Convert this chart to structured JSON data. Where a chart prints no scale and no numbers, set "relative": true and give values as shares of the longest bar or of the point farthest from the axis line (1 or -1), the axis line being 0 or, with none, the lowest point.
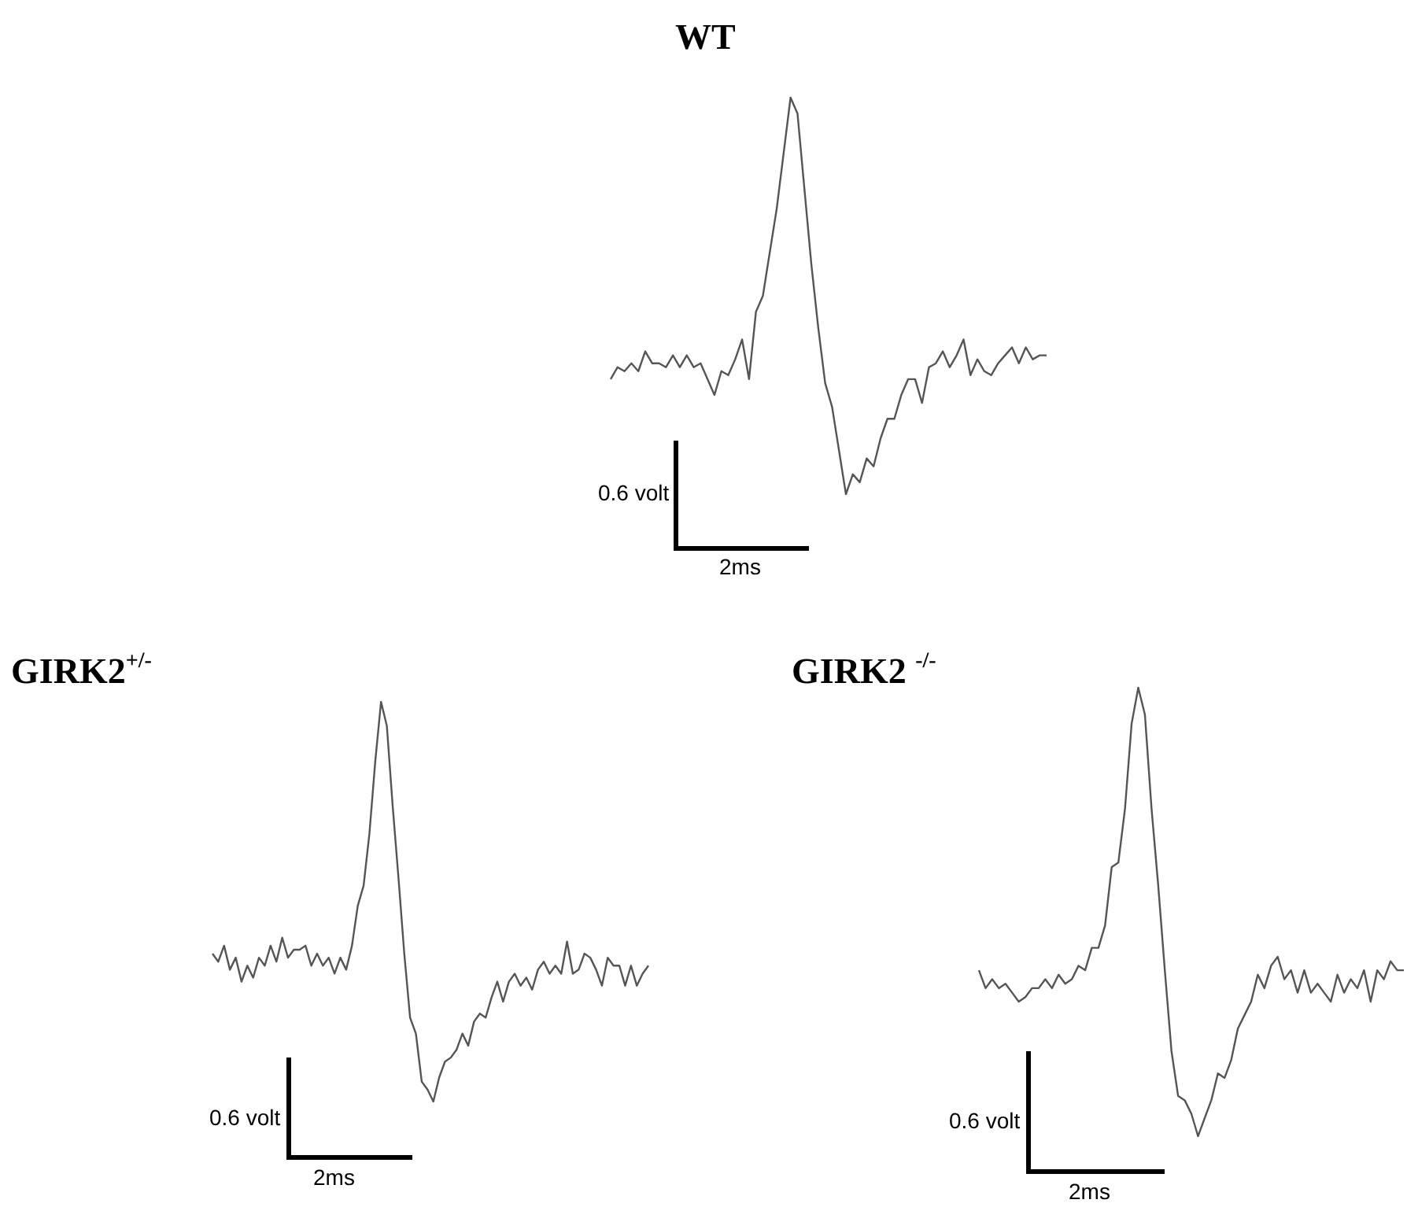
{
  "chart_data": [
    {
      "type": "line",
      "title": "WT",
      "relative": true,
      "categories": [
        null,
        null,
        null,
        null,
        null,
        null,
        null,
        null,
        null,
        null,
        null,
        null,
        null,
        null,
        null,
        null,
        null,
        null,
        null,
        null,
        null,
        null,
        null,
        null,
        null,
        null,
        null,
        null,
        null,
        null,
        null,
        null,
        null,
        null,
        null,
        null,
        null,
        null,
        null,
        null,
        null,
        null,
        null,
        null,
        null,
        null,
        null,
        null,
        null,
        null,
        null,
        null,
        null,
        null,
        null,
        null,
        null,
        null,
        null,
        null,
        null,
        null,
        null,
        null
      ],
      "series": [
        {
          "color": "#555555",
          "values": [
            0.29,
            0.32,
            0.31,
            0.33,
            0.31,
            0.36,
            0.33,
            0.33,
            0.32,
            0.35,
            0.32,
            0.35,
            0.32,
            0.33,
            0.29,
            0.25,
            0.31,
            0.3,
            0.34,
            0.39,
            0.29,
            0.46,
            0.5,
            0.61,
            0.72,
            0.86,
            1.0,
            0.96,
            0.77,
            0.58,
            0.42,
            0.28,
            0.22,
            0.11,
            0.0,
            0.05,
            0.03,
            0.09,
            0.07,
            0.14,
            0.19,
            0.19,
            0.25,
            0.29,
            0.29,
            0.23,
            0.32,
            0.33,
            0.36,
            0.32,
            0.35,
            0.39,
            0.3,
            0.34,
            0.31,
            0.3,
            0.33,
            0.35,
            0.37,
            0.33,
            0.37,
            0.34,
            0.35,
            0.35
          ]
        }
      ],
      "annotations": [
        "0.6 volt",
        "2ms"
      ]
    },
    {
      "type": "line",
      "title": "GIRK2$^{+/-}$",
      "relative": true,
      "categories": [
        null,
        null,
        null,
        null,
        null,
        null,
        null,
        null,
        null,
        null,
        null,
        null,
        null,
        null,
        null,
        null,
        null,
        null,
        null,
        null,
        null,
        null,
        null,
        null,
        null,
        null,
        null,
        null,
        null,
        null,
        null,
        null,
        null,
        null,
        null,
        null,
        null,
        null,
        null,
        null,
        null,
        null,
        null,
        null,
        null,
        null,
        null,
        null,
        null,
        null,
        null,
        null,
        null,
        null,
        null,
        null,
        null,
        null,
        null,
        null,
        null,
        null,
        null,
        null,
        null,
        null,
        null,
        null,
        null,
        null,
        null,
        null,
        null,
        null,
        null,
        null
      ],
      "series": [
        {
          "color": "#555555",
          "values": [
            0.37,
            0.35,
            0.39,
            0.33,
            0.36,
            0.3,
            0.34,
            0.31,
            0.36,
            0.34,
            0.39,
            0.35,
            0.41,
            0.36,
            0.38,
            0.38,
            0.39,
            0.34,
            0.37,
            0.34,
            0.36,
            0.32,
            0.36,
            0.33,
            0.39,
            0.49,
            0.54,
            0.67,
            0.85,
            1.0,
            0.94,
            0.74,
            0.56,
            0.37,
            0.21,
            0.17,
            0.05,
            0.03,
            0.0,
            0.06,
            0.1,
            0.11,
            0.13,
            0.17,
            0.14,
            0.2,
            0.22,
            0.21,
            0.26,
            0.3,
            0.25,
            0.3,
            0.32,
            0.29,
            0.31,
            0.28,
            0.33,
            0.35,
            0.32,
            0.34,
            0.32,
            0.4,
            0.32,
            0.33,
            0.37,
            0.36,
            0.33,
            0.29,
            0.36,
            0.34,
            0.34,
            0.29,
            0.34,
            0.29,
            0.32,
            0.34
          ]
        }
      ],
      "annotations": [
        "0.6 volt",
        "2ms"
      ]
    },
    {
      "type": "line",
      "title": "GIRK2 $^{-/-}$",
      "relative": true,
      "categories": [
        null,
        null,
        null,
        null,
        null,
        null,
        null,
        null,
        null,
        null,
        null,
        null,
        null,
        null,
        null,
        null,
        null,
        null,
        null,
        null,
        null,
        null,
        null,
        null,
        null,
        null,
        null,
        null,
        null,
        null,
        null,
        null,
        null,
        null,
        null,
        null,
        null,
        null,
        null,
        null,
        null,
        null,
        null,
        null,
        null,
        null,
        null,
        null,
        null,
        null,
        null,
        null,
        null,
        null,
        null,
        null,
        null,
        null,
        null,
        null,
        null,
        null,
        null,
        null,
        null
      ],
      "series": [
        {
          "color": "#555555",
          "values": [
            0.37,
            0.33,
            0.35,
            0.33,
            0.34,
            0.32,
            0.3,
            0.31,
            0.33,
            0.33,
            0.35,
            0.33,
            0.36,
            0.34,
            0.35,
            0.38,
            0.37,
            0.42,
            0.42,
            0.47,
            0.6,
            0.61,
            0.73,
            0.92,
            1.0,
            0.94,
            0.73,
            0.56,
            0.37,
            0.19,
            0.09,
            0.08,
            0.05,
            0.0,
            0.04,
            0.08,
            0.14,
            0.13,
            0.17,
            0.24,
            0.27,
            0.3,
            0.36,
            0.33,
            0.38,
            0.4,
            0.35,
            0.37,
            0.32,
            0.37,
            0.32,
            0.34,
            0.32,
            0.3,
            0.36,
            0.32,
            0.35,
            0.33,
            0.37,
            0.3,
            0.37,
            0.35,
            0.39,
            0.37,
            0.37
          ]
        }
      ],
      "annotations": [
        "0.6 volt",
        "2ms"
      ]
    }
  ]
}
